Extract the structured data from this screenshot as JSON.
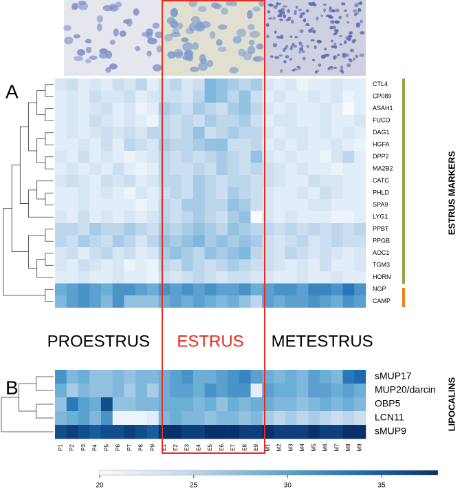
{
  "chart_data": {
    "type": "heatmap",
    "columns": [
      "P1",
      "P2",
      "P3",
      "P4",
      "P5",
      "P6",
      "P7",
      "P8",
      "P9",
      "E1",
      "E2",
      "E3",
      "E4",
      "E5",
      "E6",
      "E7",
      "E8",
      "E9",
      "M1",
      "M2",
      "M3",
      "M4",
      "M5",
      "M6",
      "M7",
      "M8",
      "M9"
    ],
    "phases": [
      {
        "label": "PROESTRUS",
        "color": "#000000"
      },
      {
        "label": "ESTRUS",
        "color": "#e8291c"
      },
      {
        "label": "METESTRUS",
        "color": "#000000"
      }
    ],
    "zlim": [
      20,
      38
    ],
    "zticks": [
      20,
      25,
      30,
      35
    ],
    "colormap": [
      "#f7fbff",
      "#c6dbef",
      "#6baed6",
      "#2171b5",
      "#08306b"
    ],
    "panels": [
      {
        "label": "A",
        "group": "ESTRUS MARKERS",
        "rows": [
          "CTL4",
          "CP089",
          "ASAH1",
          "FUCO",
          "DAG1",
          "HGFA",
          "DPP2",
          "MA2B2",
          "CATC",
          "PHLD",
          "SPA9",
          "LYG1",
          "PPBT",
          "PPGB",
          "AOC1",
          "TGM3",
          "HORN",
          "NGP",
          "CAMP"
        ],
        "values": [
          [
            23,
            24,
            22,
            23,
            22,
            24,
            23,
            25,
            22,
            24,
            25,
            23,
            24,
            28,
            27,
            26,
            25,
            26,
            23,
            22,
            23,
            21,
            22,
            22,
            23,
            22,
            22
          ],
          [
            22,
            23,
            22,
            24,
            23,
            23,
            24,
            22,
            23,
            24,
            24,
            23,
            25,
            28,
            27,
            25,
            27,
            24,
            22,
            23,
            22,
            22,
            23,
            22,
            23,
            21,
            22
          ],
          [
            22,
            23,
            22,
            23,
            24,
            22,
            23,
            21,
            22,
            26,
            25,
            24,
            26,
            25,
            24,
            26,
            27,
            25,
            23,
            22,
            23,
            22,
            22,
            23,
            22,
            20,
            22
          ],
          [
            22,
            23,
            22,
            24,
            23,
            22,
            23,
            22,
            21,
            25,
            24,
            25,
            24,
            26,
            25,
            25,
            26,
            24,
            22,
            23,
            23,
            22,
            22,
            23,
            22,
            22,
            23
          ],
          [
            22,
            23,
            22,
            23,
            24,
            23,
            24,
            23,
            25,
            25,
            24,
            25,
            27,
            24,
            25,
            26,
            25,
            25,
            23,
            22,
            23,
            23,
            22,
            23,
            22,
            23,
            22
          ],
          [
            22,
            22,
            23,
            22,
            24,
            22,
            25,
            24,
            23,
            26,
            25,
            25,
            26,
            27,
            27,
            24,
            24,
            25,
            22,
            23,
            22,
            23,
            22,
            22,
            23,
            22,
            21
          ],
          [
            23,
            22,
            24,
            22,
            23,
            22,
            21,
            22,
            23,
            25,
            24,
            25,
            24,
            25,
            26,
            25,
            24,
            27,
            23,
            22,
            23,
            22,
            22,
            21,
            23,
            25,
            22
          ],
          [
            22,
            23,
            22,
            23,
            22,
            24,
            22,
            21,
            22,
            25,
            24,
            24,
            25,
            24,
            26,
            25,
            24,
            25,
            24,
            23,
            22,
            23,
            22,
            22,
            21,
            22,
            22
          ],
          [
            23,
            24,
            23,
            22,
            24,
            23,
            24,
            22,
            23,
            25,
            25,
            24,
            26,
            25,
            24,
            25,
            25,
            24,
            24,
            23,
            22,
            22,
            24,
            23,
            23,
            22,
            22
          ],
          [
            22,
            22,
            23,
            22,
            23,
            22,
            21,
            23,
            22,
            24,
            25,
            24,
            26,
            25,
            24,
            26,
            25,
            24,
            23,
            22,
            22,
            23,
            22,
            24,
            23,
            22,
            22
          ],
          [
            22,
            22,
            23,
            22,
            22,
            22,
            22,
            21,
            22,
            25,
            24,
            26,
            26,
            25,
            25,
            27,
            26,
            24,
            23,
            22,
            22,
            22,
            23,
            23,
            22,
            22,
            22
          ],
          [
            23,
            22,
            24,
            22,
            23,
            22,
            23,
            22,
            23,
            25,
            24,
            25,
            26,
            25,
            24,
            26,
            27,
            20,
            23,
            22,
            23,
            22,
            22,
            22,
            21,
            21,
            22
          ],
          [
            25,
            25,
            24,
            26,
            25,
            25,
            26,
            25,
            24,
            26,
            25,
            26,
            27,
            26,
            25,
            27,
            26,
            25,
            25,
            24,
            25,
            24,
            25,
            24,
            25,
            24,
            25
          ],
          [
            25,
            24,
            26,
            25,
            24,
            26,
            25,
            23,
            25,
            27,
            26,
            27,
            28,
            26,
            27,
            26,
            27,
            26,
            24,
            23,
            24,
            25,
            23,
            24,
            25,
            24,
            24
          ],
          [
            23,
            24,
            22,
            24,
            25,
            23,
            24,
            22,
            23,
            26,
            27,
            26,
            25,
            27,
            26,
            27,
            28,
            25,
            24,
            23,
            25,
            24,
            23,
            24,
            23,
            22,
            23
          ],
          [
            23,
            22,
            24,
            23,
            22,
            23,
            21,
            22,
            21,
            25,
            24,
            26,
            25,
            24,
            25,
            26,
            25,
            24,
            24,
            23,
            22,
            23,
            22,
            24,
            22,
            22,
            23
          ],
          [
            22,
            22,
            23,
            22,
            22,
            23,
            22,
            22,
            21,
            24,
            23,
            24,
            25,
            24,
            23,
            24,
            24,
            23,
            23,
            22,
            22,
            23,
            22,
            22,
            23,
            22,
            22
          ],
          [
            29,
            30,
            31,
            30,
            29,
            31,
            31,
            30,
            29,
            31,
            30,
            31,
            30,
            31,
            30,
            30,
            31,
            29,
            30,
            31,
            31,
            30,
            32,
            32,
            31,
            33,
            31
          ],
          [
            28,
            30,
            31,
            30,
            28,
            31,
            27,
            27,
            27,
            29,
            30,
            29,
            30,
            29,
            28,
            29,
            27,
            25,
            30,
            29,
            30,
            30,
            31,
            30,
            29,
            31,
            30
          ]
        ]
      },
      {
        "label": "B",
        "group": "LIPOCALINS",
        "rows": [
          "sMUP17",
          "MUP20/darcin",
          "OBP5",
          "LCN11",
          "sMUP9"
        ],
        "values": [
          [
            31,
            28,
            29,
            27,
            27,
            28,
            27,
            28,
            28,
            29,
            30,
            31,
            29,
            29,
            30,
            31,
            32,
            30,
            29,
            28,
            29,
            28,
            30,
            29,
            28,
            33,
            34
          ],
          [
            29,
            26,
            28,
            27,
            27,
            28,
            26,
            28,
            26,
            29,
            30,
            30,
            29,
            31,
            30,
            31,
            31,
            22,
            30,
            29,
            29,
            28,
            30,
            30,
            29,
            30,
            29
          ],
          [
            27,
            33,
            30,
            29,
            36,
            27,
            27,
            28,
            28,
            29,
            29,
            29,
            28,
            29,
            27,
            29,
            28,
            29,
            29,
            28,
            28,
            27,
            28,
            29,
            28,
            29,
            28
          ],
          [
            28,
            29,
            30,
            28,
            31,
            21,
            21,
            21,
            22,
            28,
            29,
            28,
            28,
            27,
            28,
            28,
            27,
            28,
            26,
            25,
            26,
            25,
            26,
            25,
            24,
            25,
            24
          ],
          [
            36,
            37,
            36,
            35,
            36,
            36,
            37,
            36,
            35,
            38,
            38,
            37,
            37,
            38,
            38,
            38,
            37,
            37,
            38,
            37,
            37,
            37,
            38,
            37,
            37,
            38,
            38
          ]
        ]
      }
    ]
  }
}
